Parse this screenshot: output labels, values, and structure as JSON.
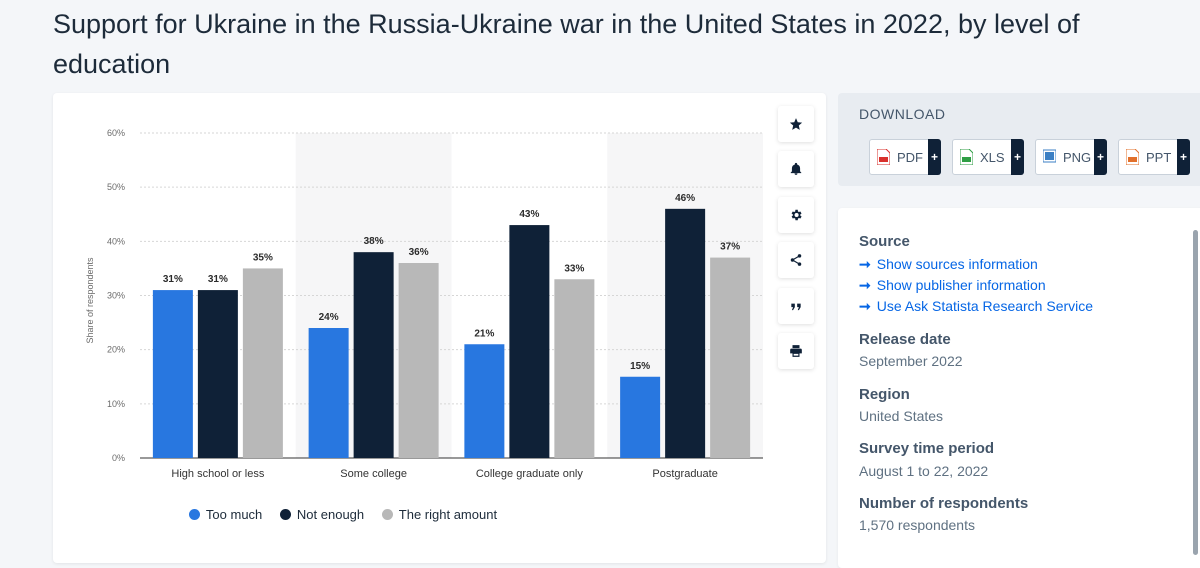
{
  "page": {
    "title": "Support for Ukraine in the Russia-Ukraine war in the United States in 2022, by level of education"
  },
  "colors": {
    "too_much": "#2877e0",
    "not_enough": "#0f2137",
    "right_amount": "#b8b8b8"
  },
  "chart_data": {
    "type": "bar",
    "title": "Support for Ukraine in the Russia-Ukraine war in the United States in 2022, by level of education",
    "ylabel": "Share of respondents",
    "xlabel": "",
    "ylim": [
      0,
      60
    ],
    "yticks": [
      "0%",
      "10%",
      "20%",
      "30%",
      "40%",
      "50%",
      "60%"
    ],
    "ytick_values": [
      0,
      10,
      20,
      30,
      40,
      50,
      60
    ],
    "categories": [
      "High school or less",
      "Some college",
      "College graduate only",
      "Postgraduate"
    ],
    "series": [
      {
        "name": "Too much",
        "values": [
          31,
          24,
          21,
          15
        ],
        "labels": [
          "31%",
          "24%",
          "21%",
          "15%"
        ]
      },
      {
        "name": "Not enough",
        "values": [
          31,
          38,
          43,
          46
        ],
        "labels": [
          "31%",
          "38%",
          "43%",
          "46%"
        ]
      },
      {
        "name": "The right amount",
        "values": [
          35,
          36,
          33,
          37
        ],
        "labels": [
          "35%",
          "36%",
          "33%",
          "37%"
        ]
      }
    ],
    "legend_position": "bottom",
    "grid": true
  },
  "toolbar": {
    "buttons": [
      "star-icon",
      "bell-icon",
      "gear-icon",
      "share-icon",
      "quote-icon",
      "print-icon"
    ]
  },
  "download": {
    "title": "DOWNLOAD",
    "formats": [
      {
        "label": "PDF",
        "color": "#d9302c"
      },
      {
        "label": "XLS",
        "color": "#2f9e44"
      },
      {
        "label": "PNG",
        "color": "#3b7fc4"
      },
      {
        "label": "PPT",
        "color": "#e2702b"
      }
    ],
    "plus": "+"
  },
  "details": {
    "source_heading": "Source",
    "source_links": [
      "Show sources information",
      "Show publisher information",
      "Use Ask Statista Research Service"
    ],
    "arrow": "➞",
    "release_heading": "Release date",
    "release_value": "September 2022",
    "region_heading": "Region",
    "region_value": "United States",
    "survey_heading": "Survey time period",
    "survey_value": "August 1 to 22, 2022",
    "respondents_heading": "Number of respondents",
    "respondents_value": "1,570 respondents"
  }
}
